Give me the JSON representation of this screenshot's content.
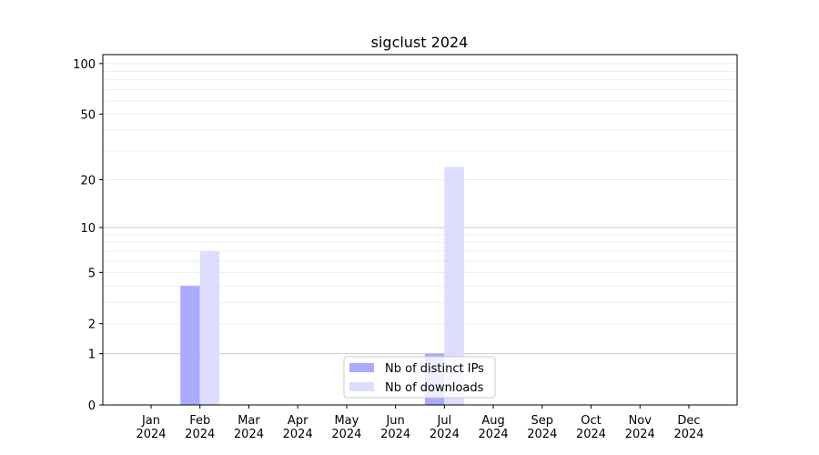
{
  "chart_data": {
    "type": "bar",
    "title": "sigclust 2024",
    "xlabel": "",
    "ylabel": "",
    "categories": [
      "Jan\n2024",
      "Feb\n2024",
      "Mar\n2024",
      "Apr\n2024",
      "May\n2024",
      "Jun\n2024",
      "Jul\n2024",
      "Aug\n2024",
      "Sep\n2024",
      "Oct\n2024",
      "Nov\n2024",
      "Dec\n2024"
    ],
    "series": [
      {
        "name": "Nb of distinct IPs",
        "color": "#aaaaff",
        "values": [
          0,
          4,
          0,
          0,
          0,
          0,
          1,
          0,
          0,
          0,
          0,
          0
        ]
      },
      {
        "name": "Nb of downloads",
        "color": "#ddddff",
        "values": [
          0,
          7,
          0,
          0,
          0,
          0,
          24,
          0,
          0,
          0,
          0,
          0
        ]
      }
    ],
    "yscale": "log10(1+y)",
    "ylim": [
      0,
      113
    ],
    "yticks": [
      0,
      1,
      2,
      5,
      10,
      20,
      50,
      100
    ],
    "grid": true,
    "legend_placement": "lower-center"
  }
}
